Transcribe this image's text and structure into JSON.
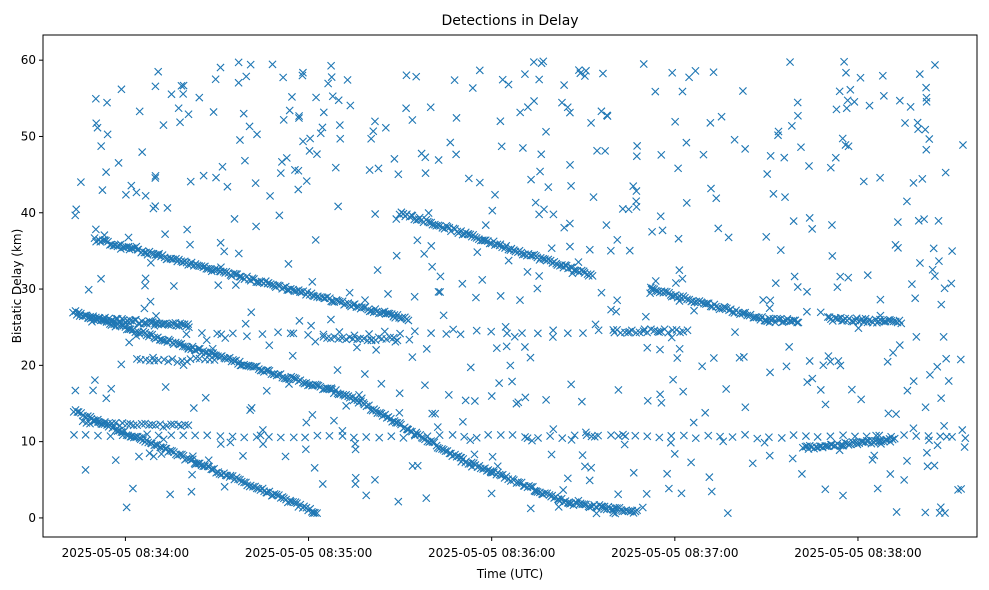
{
  "chart_data": {
    "type": "scatter",
    "title": "Detections in Delay",
    "xlabel": "Time (UTC)",
    "ylabel": "Bistatic Delay (km)",
    "x_unit": "time (UTC)",
    "xlim": [
      "2025-05-05 08:33:33",
      "2025-05-05 08:38:39"
    ],
    "ylim": [
      -2.5,
      63.3
    ],
    "grid": false,
    "legend": "none",
    "marker": "x",
    "color": "#1f77b4",
    "x_ticks": [
      {
        "time": "2025-05-05 08:34:00",
        "label": "2025-05-05 08:34:00"
      },
      {
        "time": "2025-05-05 08:35:00",
        "label": "2025-05-05 08:35:00"
      },
      {
        "time": "2025-05-05 08:36:00",
        "label": "2025-05-05 08:36:00"
      },
      {
        "time": "2025-05-05 08:37:00",
        "label": "2025-05-05 08:37:00"
      },
      {
        "time": "2025-05-05 08:38:00",
        "label": "2025-05-05 08:38:00"
      }
    ],
    "y_ticks": [
      0,
      10,
      20,
      30,
      40,
      50,
      60
    ],
    "tracks": [
      {
        "start": [
          "2025-05-05 08:33:43",
          14.0
        ],
        "end": [
          "2025-05-05 08:35:03",
          0.6
        ],
        "spacing_s": 0.6
      },
      {
        "start": [
          "2025-05-05 08:33:43",
          27.0
        ],
        "end": [
          "2025-05-05 08:35:13",
          16.0
        ],
        "spacing_s": 0.6
      },
      {
        "start": [
          "2025-05-05 08:35:13",
          16.0
        ],
        "end": [
          "2025-05-05 08:35:50",
          7.7
        ],
        "spacing_s": 0.6
      },
      {
        "start": [
          "2025-05-05 08:35:50",
          7.7
        ],
        "end": [
          "2025-05-05 08:36:25",
          2.0
        ],
        "spacing_s": 0.6
      },
      {
        "start": [
          "2025-05-05 08:36:25",
          2.0
        ],
        "end": [
          "2025-05-05 08:36:48",
          0.8
        ],
        "spacing_s": 0.6
      },
      {
        "start": [
          "2025-05-05 08:33:50",
          36.5
        ],
        "end": [
          "2025-05-05 08:35:33",
          26.0
        ],
        "spacing_s": 0.6
      },
      {
        "start": [
          "2025-05-05 08:35:30",
          40.0
        ],
        "end": [
          "2025-05-05 08:36:33",
          31.8
        ],
        "spacing_s": 0.6
      },
      {
        "start": [
          "2025-05-05 08:36:52",
          30.0
        ],
        "end": [
          "2025-05-05 08:37:31",
          25.9
        ],
        "spacing_s": 0.6
      },
      {
        "start": [
          "2025-05-05 08:37:31",
          25.9
        ],
        "end": [
          "2025-05-05 08:37:41",
          25.8
        ],
        "spacing_s": 0.6
      },
      {
        "start": [
          "2025-05-05 08:37:50",
          26.1
        ],
        "end": [
          "2025-05-05 08:38:14",
          25.7
        ],
        "spacing_s": 0.6
      },
      {
        "start": [
          "2025-05-05 08:33:48",
          26.2
        ],
        "end": [
          "2025-05-05 08:34:21",
          25.2
        ],
        "spacing_s": 0.6
      },
      {
        "start": [
          "2025-05-05 08:33:46",
          12.5
        ],
        "end": [
          "2025-05-05 08:34:21",
          12.0
        ],
        "spacing_s": 1.2
      },
      {
        "start": [
          "2025-05-05 08:37:42",
          9.2
        ],
        "end": [
          "2025-05-05 08:38:12",
          10.2
        ],
        "spacing_s": 0.6
      },
      {
        "start": [
          "2025-05-05 08:33:43",
          10.8
        ],
        "end": [
          "2025-05-05 08:38:35",
          10.6
        ],
        "spacing_s": 4.0
      },
      {
        "start": [
          "2025-05-05 08:34:20",
          24.0
        ],
        "end": [
          "2025-05-05 08:36:55",
          24.5
        ],
        "spacing_s": 5.0
      },
      {
        "start": [
          "2025-05-05 08:34:05",
          20.5
        ],
        "end": [
          "2025-05-05 08:34:30",
          20.8
        ],
        "spacing_s": 1.5
      },
      {
        "start": [
          "2025-05-05 08:35:05",
          23.5
        ],
        "end": [
          "2025-05-05 08:35:30",
          23.5
        ],
        "spacing_s": 1.2
      },
      {
        "start": [
          "2025-05-05 08:36:40",
          24.5
        ],
        "end": [
          "2025-05-05 08:37:05",
          24.5
        ],
        "spacing_s": 1.2
      }
    ],
    "clutter": {
      "count": 620,
      "x_range": [
        "2025-05-05 08:33:43",
        "2025-05-05 08:38:35"
      ],
      "y_range": [
        0.4,
        60.0
      ]
    }
  }
}
